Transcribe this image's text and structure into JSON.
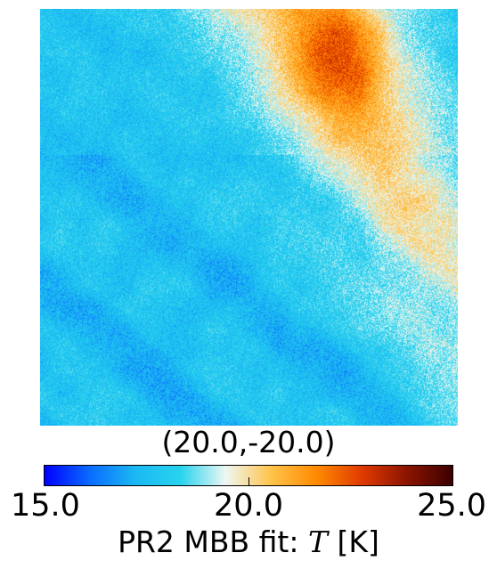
{
  "map": {
    "coordinate_label": "(20.0,-20.0)",
    "colormap": [
      "#0000ff",
      "#0a6cff",
      "#1bb8f2",
      "#27d3ee",
      "#eef7f3",
      "#ffc34a",
      "#ff8a00",
      "#e03a00",
      "#8a1400",
      "#3c0000"
    ]
  },
  "colorbar": {
    "min_label": "15.0",
    "mid_label": "20.0",
    "max_label": "25.0",
    "vmin": 15.0,
    "vmax": 25.0,
    "label_prefix": "PR2 MBB fit: ",
    "label_symbol": "T",
    "label_unit": " [K]"
  }
}
